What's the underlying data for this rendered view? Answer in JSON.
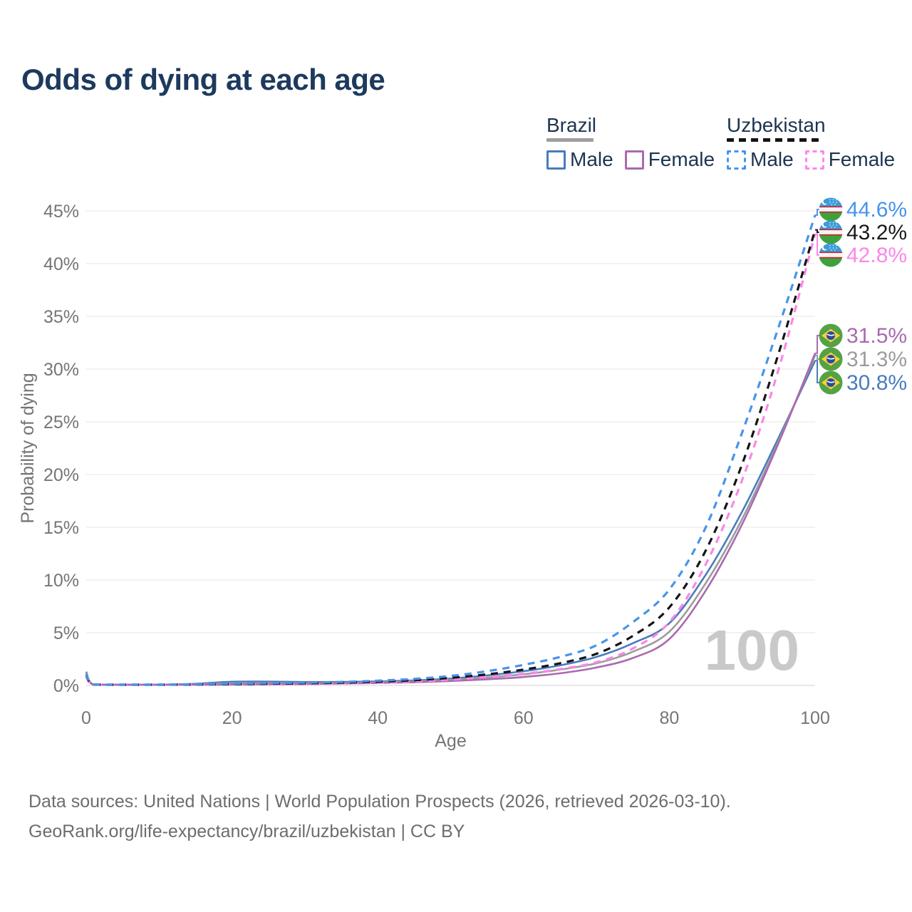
{
  "title": "Odds of dying at each age",
  "legend": {
    "groups": [
      {
        "country": "Brazil",
        "line_style": "solid",
        "underline_color": "#9e9e9e",
        "items": [
          {
            "label": "Male",
            "color": "#4a7bbd",
            "dashed": false
          },
          {
            "label": "Female",
            "color": "#a96ab0",
            "dashed": false
          }
        ]
      },
      {
        "country": "Uzbekistan",
        "line_style": "dashed",
        "underline_color": "#141414",
        "items": [
          {
            "label": "Male",
            "color": "#4793eb",
            "dashed": true
          },
          {
            "label": "Female",
            "color": "#fb87e6",
            "dashed": true
          }
        ]
      }
    ]
  },
  "watermark_hover_age": "100",
  "chart_data": {
    "type": "line",
    "title": "Odds of dying at each age",
    "xlabel": "Age",
    "ylabel": "Probability of dying",
    "xlim": [
      0,
      100
    ],
    "ylim": [
      0,
      45
    ],
    "grid": true,
    "legend_position": "top-right",
    "x_ticks": [
      0,
      20,
      40,
      60,
      80,
      100
    ],
    "y_ticks": [
      "0%",
      "5%",
      "10%",
      "15%",
      "20%",
      "25%",
      "30%",
      "35%",
      "40%",
      "45%"
    ],
    "ages": [
      0,
      1,
      5,
      10,
      15,
      20,
      25,
      30,
      35,
      40,
      45,
      50,
      55,
      60,
      65,
      70,
      75,
      80,
      85,
      90,
      95,
      100
    ],
    "unit": "percent",
    "series": [
      {
        "name": "Uzbekistan Male",
        "color": "#4793eb",
        "dash": "dashed",
        "flag": "uzbekistan",
        "flag_icon": "uzbekistan-flag-icon",
        "end_label": "44.6%",
        "values": [
          1.1,
          0.09,
          0.05,
          0.06,
          0.11,
          0.16,
          0.21,
          0.26,
          0.33,
          0.45,
          0.62,
          0.9,
          1.35,
          1.95,
          2.7,
          3.8,
          6.0,
          9.1,
          15.0,
          24.0,
          34.0,
          44.6
        ]
      },
      {
        "name": "Uzbekistan Average",
        "color": "#141414",
        "dash": "dashed",
        "flag": "uzbekistan",
        "flag_icon": "uzbekistan-flag-icon",
        "end_label": "43.2%",
        "values": [
          1.0,
          0.08,
          0.04,
          0.05,
          0.09,
          0.12,
          0.16,
          0.2,
          0.26,
          0.35,
          0.49,
          0.72,
          1.05,
          1.5,
          2.1,
          3.0,
          4.7,
          7.4,
          12.8,
          21.0,
          31.5,
          43.2
        ]
      },
      {
        "name": "Uzbekistan Female",
        "color": "#fb87e6",
        "dash": "dashed",
        "flag": "uzbekistan",
        "flag_icon": "uzbekistan-flag-icon",
        "end_label": "42.8%",
        "values": [
          0.85,
          0.07,
          0.04,
          0.04,
          0.06,
          0.09,
          0.11,
          0.14,
          0.19,
          0.26,
          0.37,
          0.55,
          0.8,
          1.1,
          1.55,
          2.2,
          3.5,
          6.0,
          11.5,
          19.5,
          30.0,
          42.8
        ]
      },
      {
        "name": "Brazil Female",
        "color": "#a96ab0",
        "dash": "solid",
        "flag": "brazil",
        "flag_icon": "brazil-flag-icon",
        "end_label": "31.5%",
        "values": [
          1.1,
          0.07,
          0.03,
          0.04,
          0.06,
          0.09,
          0.11,
          0.14,
          0.18,
          0.23,
          0.3,
          0.42,
          0.58,
          0.8,
          1.15,
          1.7,
          2.6,
          4.4,
          9.0,
          15.3,
          23.0,
          31.5
        ]
      },
      {
        "name": "Brazil Average",
        "color": "#9c9c9c",
        "dash": "solid",
        "flag": "brazil",
        "flag_icon": "brazil-flag-icon",
        "end_label": "31.3%",
        "values": [
          1.2,
          0.08,
          0.04,
          0.05,
          0.11,
          0.21,
          0.23,
          0.22,
          0.24,
          0.28,
          0.37,
          0.52,
          0.75,
          1.05,
          1.5,
          2.1,
          3.2,
          5.1,
          9.7,
          15.8,
          23.2,
          31.3
        ]
      },
      {
        "name": "Brazil Male",
        "color": "#4a7bbd",
        "dash": "solid",
        "flag": "brazil",
        "flag_icon": "brazil-flag-icon",
        "end_label": "30.8%",
        "values": [
          1.3,
          0.08,
          0.04,
          0.06,
          0.16,
          0.35,
          0.36,
          0.33,
          0.33,
          0.38,
          0.48,
          0.65,
          0.95,
          1.35,
          1.9,
          2.7,
          4.0,
          5.9,
          10.5,
          16.5,
          23.5,
          30.8
        ]
      }
    ]
  },
  "footer": {
    "line1": "Data sources: United Nations | World Population Prospects (2026, retrieved 2026-03-10).",
    "line2": "GeoRank.org/life-expectancy/brazil/uzbekistan | CC BY"
  }
}
